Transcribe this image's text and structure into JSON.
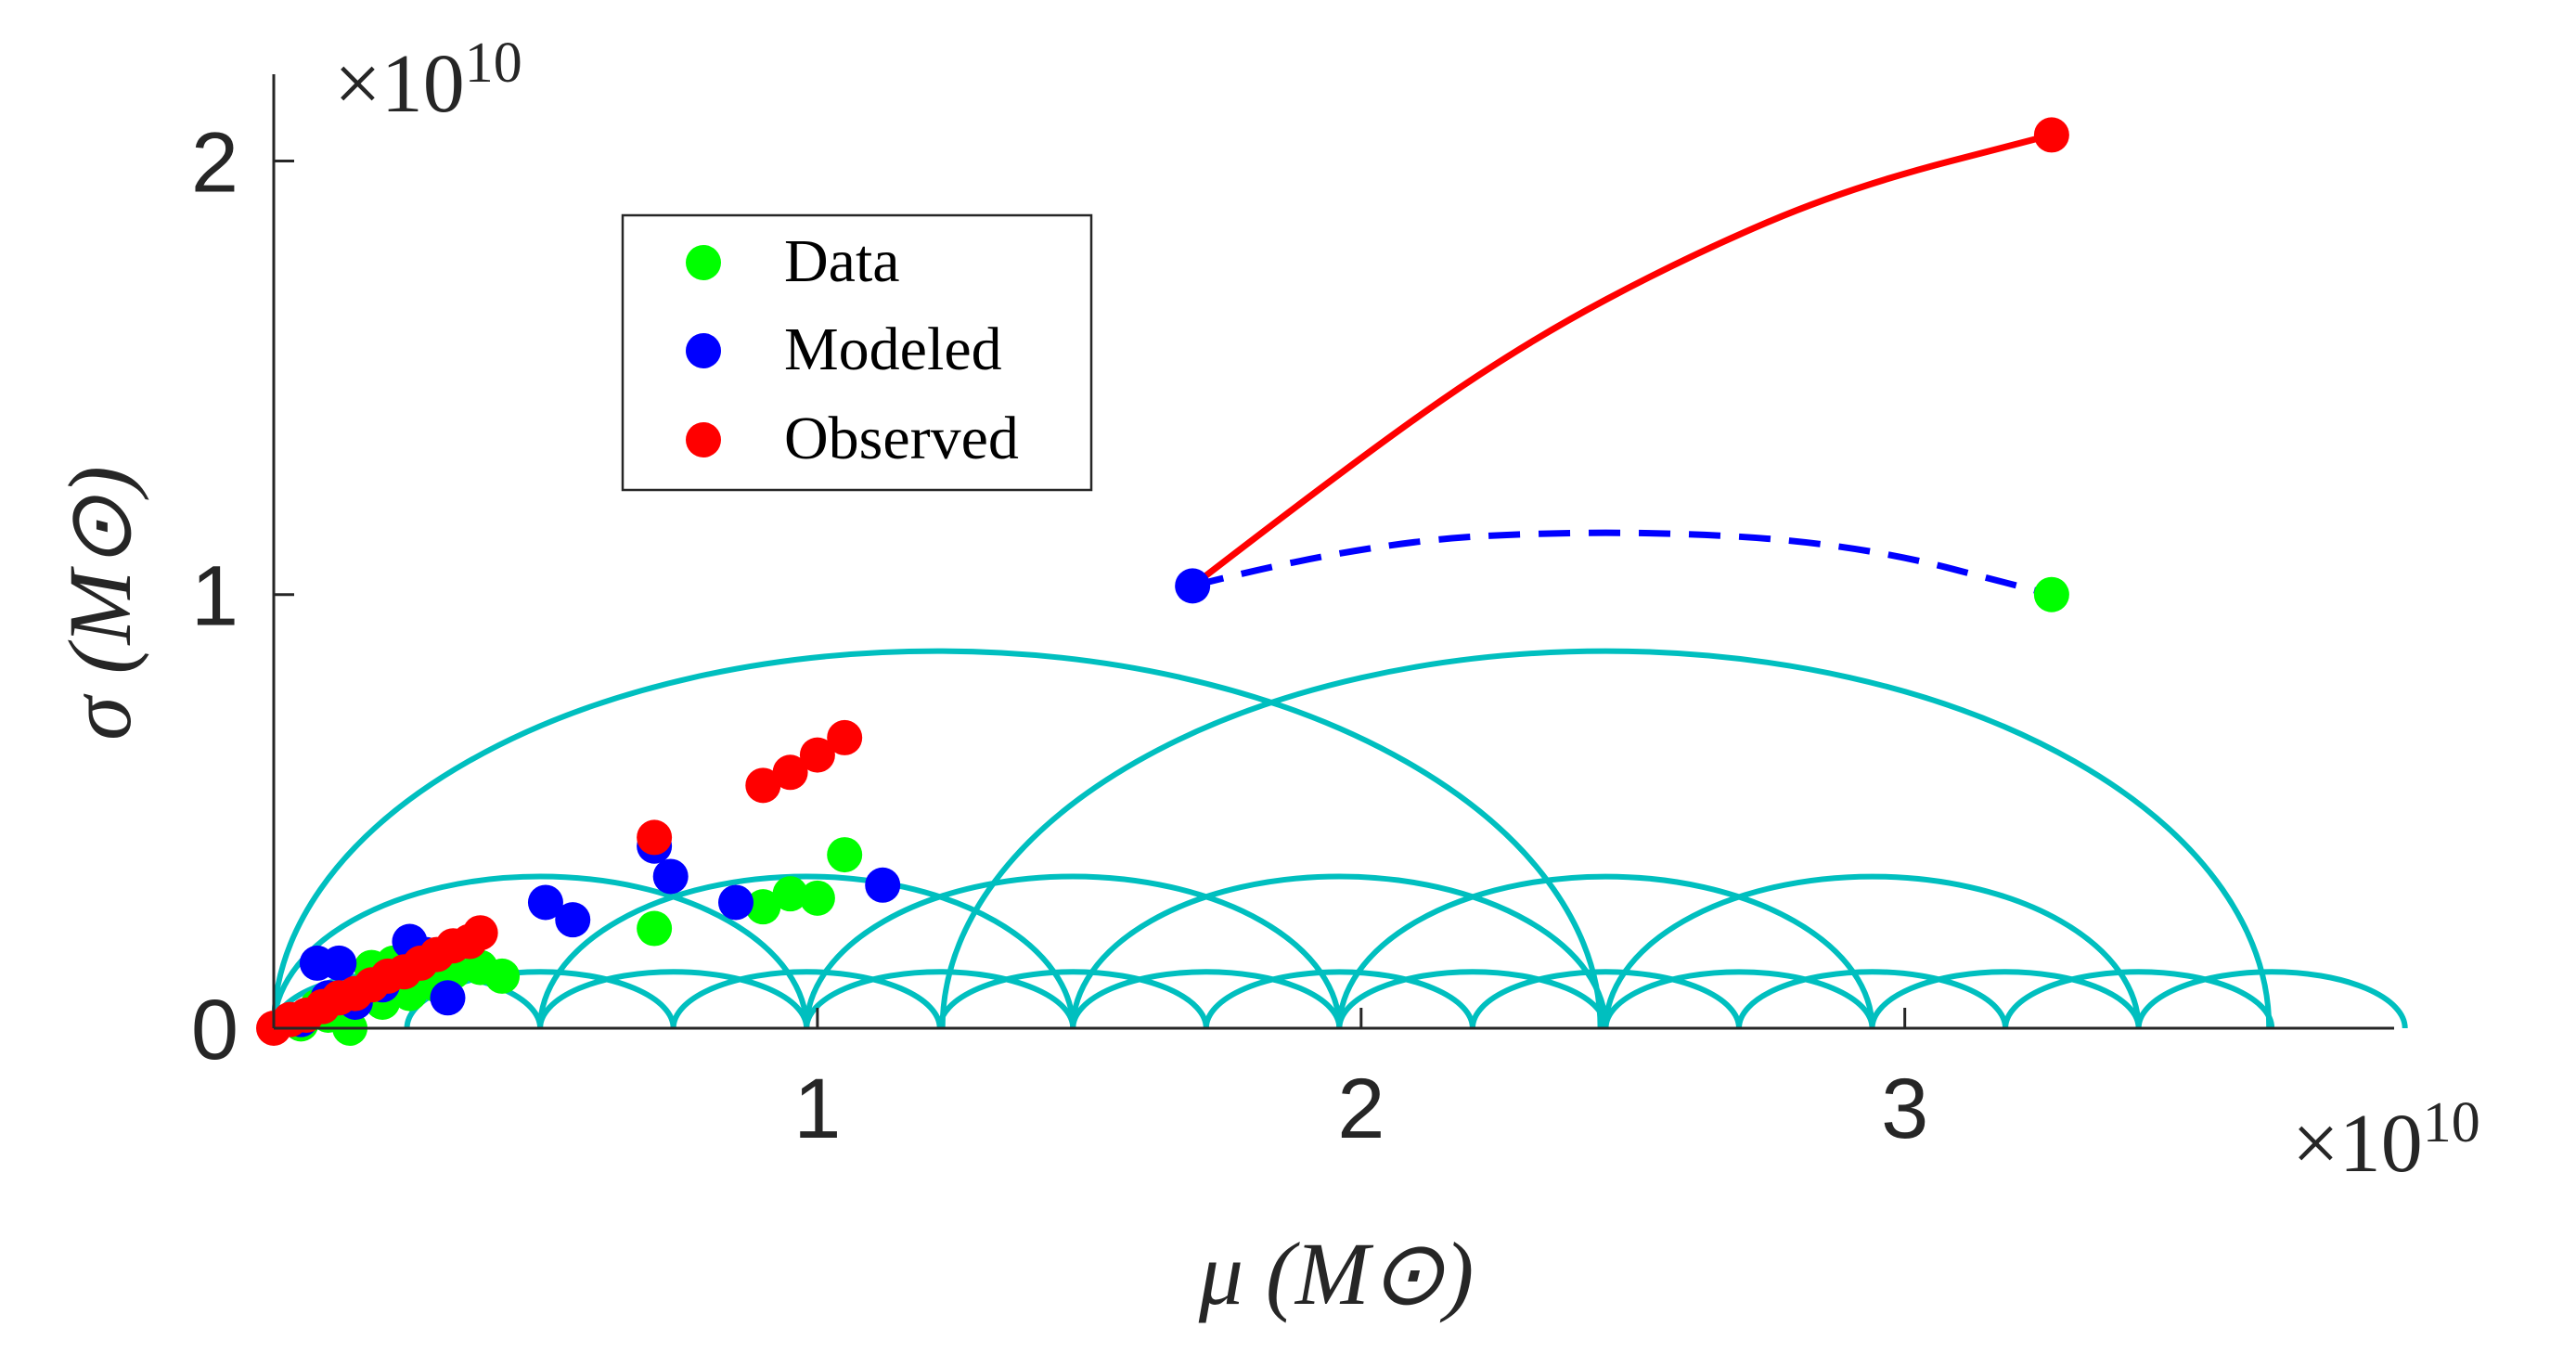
{
  "chart_data": {
    "type": "scatter",
    "xlabel": "μ (M⊙)",
    "ylabel": "σ (M⊙)",
    "x_exponent_label": "×10",
    "x_exponent_power": "10",
    "y_exponent_label": "×10",
    "y_exponent_power": "10",
    "xlim": [
      0,
      39000000000.0
    ],
    "ylim": [
      0,
      22000000000.0
    ],
    "xticks": [
      {
        "value": 10000000000.0,
        "label": "1"
      },
      {
        "value": 20000000000.0,
        "label": "2"
      },
      {
        "value": 30000000000.0,
        "label": "3"
      }
    ],
    "yticks": [
      {
        "value": 0,
        "label": "0"
      },
      {
        "value": 10000000000.0,
        "label": "1"
      },
      {
        "value": 20000000000.0,
        "label": "2"
      }
    ],
    "legend": {
      "position": "top-left",
      "items": [
        {
          "label": "Data",
          "color": "#00ff00"
        },
        {
          "label": "Modeled",
          "color": "#0000ff"
        },
        {
          "label": "Observed",
          "color": "#ff0000"
        }
      ]
    },
    "colors": {
      "data": "#00ff00",
      "modeled": "#0000ff",
      "observed": "#ff0000",
      "arcs": "#00bfbf",
      "axes": "#262626"
    },
    "arcs": [
      {
        "center": 12200000000.0,
        "radius": 12200000000.0,
        "height": 8700000000.0
      },
      {
        "center": 24500000000.0,
        "radius": 12200000000.0,
        "height": 8700000000.0
      },
      {
        "center": 4900000000.0,
        "radius": 4900000000.0,
        "height": 3500000000.0
      },
      {
        "center": 9800000000.0,
        "radius": 4900000000.0,
        "height": 3500000000.0
      },
      {
        "center": 14700000000.0,
        "radius": 4900000000.0,
        "height": 3500000000.0
      },
      {
        "center": 19600000000.0,
        "radius": 4900000000.0,
        "height": 3500000000.0
      },
      {
        "center": 24500000000.0,
        "radius": 4900000000.0,
        "height": 3500000000.0
      },
      {
        "center": 29400000000.0,
        "radius": 4900000000.0,
        "height": 3500000000.0
      },
      {
        "center": 2450000000.0,
        "radius": 2450000000.0,
        "height": 1300000000.0
      },
      {
        "center": 4900000000.0,
        "radius": 2450000000.0,
        "height": 1300000000.0
      },
      {
        "center": 7350000000.0,
        "radius": 2450000000.0,
        "height": 1300000000.0
      },
      {
        "center": 9800000000.0,
        "radius": 2450000000.0,
        "height": 1300000000.0
      },
      {
        "center": 12250000000.0,
        "radius": 2450000000.0,
        "height": 1300000000.0
      },
      {
        "center": 14700000000.0,
        "radius": 2450000000.0,
        "height": 1300000000.0
      },
      {
        "center": 17150000000.0,
        "radius": 2450000000.0,
        "height": 1300000000.0
      },
      {
        "center": 19600000000.0,
        "radius": 2450000000.0,
        "height": 1300000000.0
      },
      {
        "center": 22050000000.0,
        "radius": 2450000000.0,
        "height": 1300000000.0
      },
      {
        "center": 24500000000.0,
        "radius": 2450000000.0,
        "height": 1300000000.0
      },
      {
        "center": 26950000000.0,
        "radius": 2450000000.0,
        "height": 1300000000.0
      },
      {
        "center": 29400000000.0,
        "radius": 2450000000.0,
        "height": 1300000000.0
      },
      {
        "center": 31850000000.0,
        "radius": 2450000000.0,
        "height": 1300000000.0
      },
      {
        "center": 34300000000.0,
        "radius": 2450000000.0,
        "height": 1300000000.0
      },
      {
        "center": 36750000000.0,
        "radius": 2450000000.0,
        "height": 1300000000.0
      }
    ],
    "series": [
      {
        "name": "Data",
        "color": "#00ff00",
        "points": [
          [
            500000000.0,
            100000000.0
          ],
          [
            1000000000.0,
            300000000.0
          ],
          [
            1400000000.0,
            0.0
          ],
          [
            2000000000.0,
            600000000.0
          ],
          [
            2500000000.0,
            800000000.0
          ],
          [
            3000000000.0,
            1000000000.0
          ],
          [
            3300000000.0,
            1300000000.0
          ],
          [
            3800000000.0,
            1400000000.0
          ],
          [
            4200000000.0,
            1200000000.0
          ],
          [
            1800000000.0,
            1400000000.0
          ],
          [
            2200000000.0,
            1500000000.0
          ],
          [
            800000000.0,
            500000000.0
          ],
          [
            7000000000.0,
            2300000000.0
          ],
          [
            9000000000.0,
            2800000000.0
          ],
          [
            9500000000.0,
            3100000000.0
          ],
          [
            10000000000.0,
            3000000000.0
          ],
          [
            10500000000.0,
            4000000000.0
          ],
          [
            32700000000.0,
            10000000000.0
          ]
        ]
      },
      {
        "name": "Modeled",
        "color": "#0000ff",
        "points": [
          [
            500000000.0,
            200000000.0
          ],
          [
            800000000.0,
            1500000000.0
          ],
          [
            1200000000.0,
            1500000000.0
          ],
          [
            1500000000.0,
            600000000.0
          ],
          [
            2000000000.0,
            1000000000.0
          ],
          [
            2500000000.0,
            2000000000.0
          ],
          [
            2800000000.0,
            1700000000.0
          ],
          [
            3200000000.0,
            700000000.0
          ],
          [
            1000000000.0,
            700000000.0
          ],
          [
            5000000000.0,
            2900000000.0
          ],
          [
            5500000000.0,
            2500000000.0
          ],
          [
            7000000000.0,
            4200000000.0
          ],
          [
            7300000000.0,
            3500000000.0
          ],
          [
            8500000000.0,
            2900000000.0
          ],
          [
            11200000000.0,
            3300000000.0
          ],
          [
            16900000000.0,
            10200000000.0
          ]
        ]
      },
      {
        "name": "Observed",
        "color": "#ff0000",
        "points": [
          [
            0.0,
            0.0
          ],
          [
            300000000.0,
            200000000.0
          ],
          [
            600000000.0,
            300000000.0
          ],
          [
            900000000.0,
            500000000.0
          ],
          [
            1200000000.0,
            700000000.0
          ],
          [
            1500000000.0,
            800000000.0
          ],
          [
            1800000000.0,
            1000000000.0
          ],
          [
            2100000000.0,
            1200000000.0
          ],
          [
            2400000000.0,
            1300000000.0
          ],
          [
            2700000000.0,
            1500000000.0
          ],
          [
            3000000000.0,
            1700000000.0
          ],
          [
            3300000000.0,
            1900000000.0
          ],
          [
            3600000000.0,
            2000000000.0
          ],
          [
            3800000000.0,
            2200000000.0
          ],
          [
            7000000000.0,
            4400000000.0
          ],
          [
            9000000000.0,
            5600000000.0
          ],
          [
            9500000000.0,
            5900000000.0
          ],
          [
            10000000000.0,
            6300000000.0
          ],
          [
            10500000000.0,
            6700000000.0
          ],
          [
            32700000000.0,
            20600000000.0
          ]
        ]
      }
    ],
    "curves": [
      {
        "name": "red-curve",
        "color": "#ff0000",
        "style": "solid",
        "points": [
          [
            16900000000.0,
            10200000000.0
          ],
          [
            20000000000.0,
            13200000000.0
          ],
          [
            23000000000.0,
            15800000000.0
          ],
          [
            26000000000.0,
            17800000000.0
          ],
          [
            29000000000.0,
            19400000000.0
          ],
          [
            32700000000.0,
            20600000000.0
          ]
        ]
      },
      {
        "name": "blue-dashed-curve",
        "color": "#0000ff",
        "style": "dashed",
        "points": [
          [
            16900000000.0,
            10200000000.0
          ],
          [
            20000000000.0,
            11200000000.0
          ],
          [
            24500000000.0,
            11500000000.0
          ],
          [
            29000000000.0,
            11200000000.0
          ],
          [
            32700000000.0,
            10000000000.0
          ]
        ]
      }
    ]
  }
}
